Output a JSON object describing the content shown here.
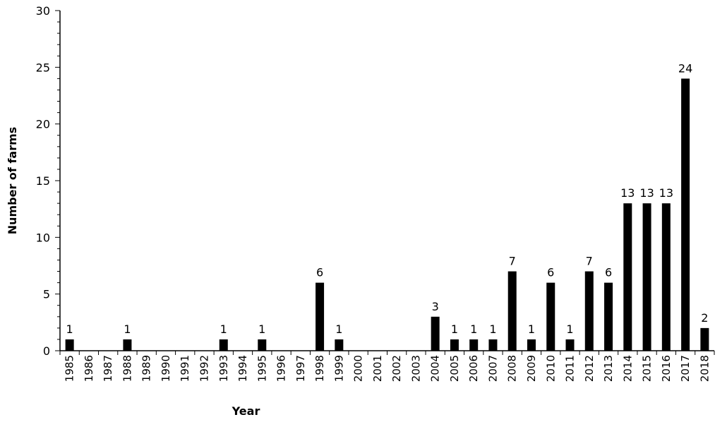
{
  "chart_data": {
    "type": "bar",
    "xlabel": "Year",
    "ylabel": "Number of farms",
    "ylim": [
      0,
      30
    ],
    "yticks": [
      0,
      5,
      10,
      15,
      20,
      25,
      30
    ],
    "grid": false,
    "legend": "none",
    "bar_color": "#000000",
    "categories": [
      "1985",
      "1986",
      "1987",
      "1988",
      "1989",
      "1990",
      "1991",
      "1992",
      "1993",
      "1994",
      "1995",
      "1996",
      "1997",
      "1998",
      "1999",
      "2000",
      "2001",
      "2002",
      "2003",
      "2004",
      "2005",
      "2006",
      "2007",
      "2008",
      "2009",
      "2010",
      "2011",
      "2012",
      "2013",
      "2014",
      "2015",
      "2016",
      "2017",
      "2018"
    ],
    "values": [
      1,
      0,
      0,
      1,
      0,
      0,
      0,
      0,
      1,
      0,
      1,
      0,
      0,
      6,
      1,
      0,
      0,
      0,
      0,
      3,
      1,
      1,
      1,
      7,
      1,
      6,
      1,
      7,
      6,
      13,
      13,
      13,
      24,
      2
    ],
    "data_labels": [
      "1",
      "",
      "",
      "1",
      "",
      "",
      "",
      "",
      "1",
      "",
      "1",
      "",
      "",
      "6",
      "1",
      "",
      "",
      "",
      "",
      "3",
      "1",
      "1",
      "1",
      "7",
      "1",
      "6",
      "1",
      "7",
      "6",
      "13",
      "13",
      "13",
      "24",
      "2"
    ]
  }
}
